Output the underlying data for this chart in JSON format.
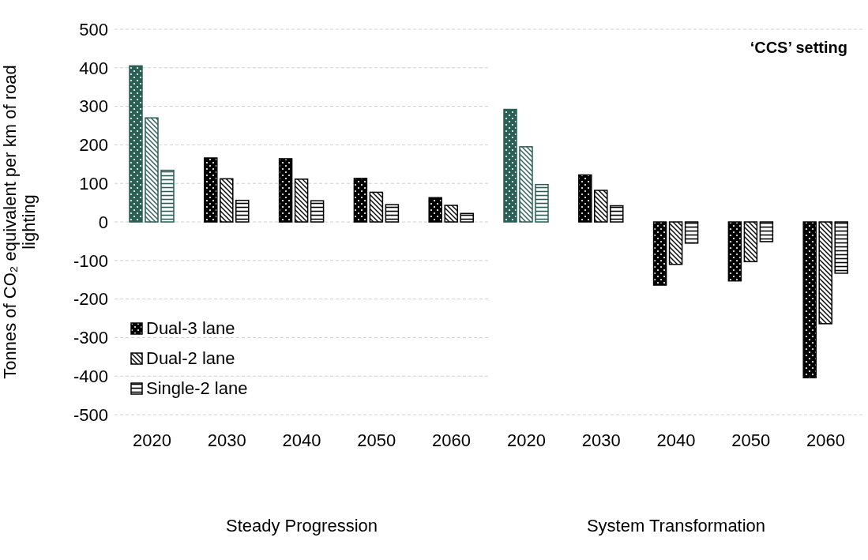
{
  "chart_data": [
    {
      "type": "bar",
      "ylabel": "Tonnes of CO₂ equivalent per km of road lighting",
      "xlabel": "Steady Progression",
      "categories": [
        "2020",
        "2030",
        "2040",
        "2050",
        "2060"
      ],
      "series": [
        {
          "name": "Dual-3 lane",
          "color": "#000000",
          "colors": [
            "#2a5f55",
            "#000000",
            "#000000",
            "#000000",
            "#000000"
          ],
          "values": [
            405,
            166,
            164,
            113,
            63
          ]
        },
        {
          "name": "Dual-2 lane",
          "color": "#000000",
          "colors": [
            "#2a5f55",
            "#000000",
            "#000000",
            "#000000",
            "#000000"
          ],
          "values": [
            270,
            112,
            111,
            77,
            43
          ]
        },
        {
          "name": "Single-2 lane",
          "color": "#000000",
          "colors": [
            "#2a5f55",
            "#000000",
            "#000000",
            "#000000",
            "#000000"
          ],
          "values": [
            134,
            56,
            55,
            45,
            22
          ]
        }
      ],
      "ylim": [
        -500,
        500
      ],
      "yticks": [
        -500,
        -400,
        -300,
        -200,
        -100,
        0,
        100,
        200,
        300,
        400,
        500
      ],
      "grid": "y",
      "legend": "bottom left"
    },
    {
      "type": "bar",
      "xlabel": "System Transformation",
      "categories": [
        "2020",
        "2030",
        "2040",
        "2050",
        "2060"
      ],
      "series": [
        {
          "color": "#000000",
          "colors": [
            "#2a5f55",
            "#000000",
            "#000000",
            "#000000",
            "#000000"
          ],
          "values": [
            292,
            122,
            -164,
            -153,
            -404
          ]
        },
        {
          "color": "#000000",
          "colors": [
            "#2a5f55",
            "#000000",
            "#000000",
            "#000000",
            "#000000"
          ],
          "values": [
            195,
            82,
            -110,
            -103,
            -264
          ]
        },
        {
          "color": "#000000",
          "colors": [
            "#2a5f55",
            "#000000",
            "#000000",
            "#000000",
            "#000000"
          ],
          "values": [
            97,
            42,
            -55,
            -51,
            -133
          ]
        }
      ],
      "ylim": [
        -500,
        500
      ],
      "yticks": [
        -500,
        -400,
        -300,
        -200,
        -100,
        0,
        100,
        200,
        300,
        400,
        500
      ],
      "grid": "y",
      "tick_labels": "x",
      "annotations": [
        "‘CCS’ setting"
      ]
    }
  ]
}
